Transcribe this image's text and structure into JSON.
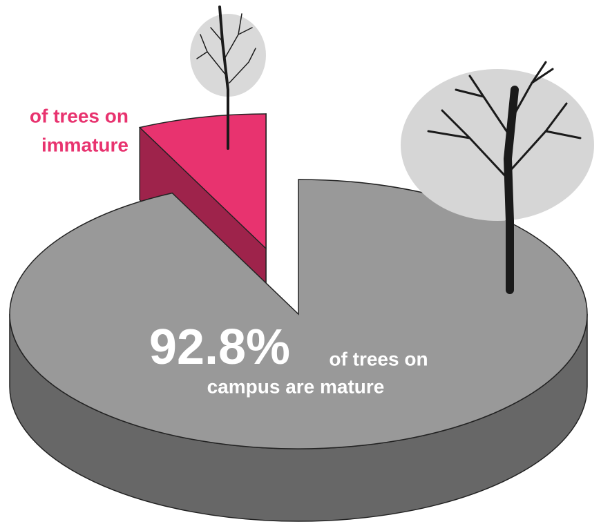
{
  "chart_data": {
    "type": "pie",
    "values": [
      92.8,
      7.2
    ],
    "value_labels": [
      "92.8%",
      null
    ],
    "labels": [
      [
        "of trees on",
        "campus are mature"
      ],
      [
        "of trees on",
        "immature"
      ]
    ],
    "colors": [
      "#999999",
      "#e8336f"
    ]
  }
}
